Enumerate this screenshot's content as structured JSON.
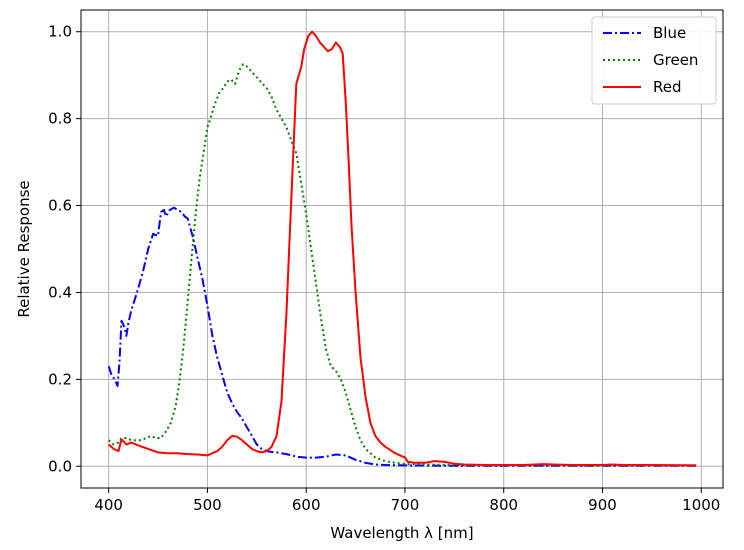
{
  "chart_data": {
    "type": "line",
    "xlabel": "Wavelength λ [nm]",
    "ylabel": "Relative Response",
    "xlim": [
      372,
      1022
    ],
    "ylim": [
      -0.05,
      1.05
    ],
    "xticks": [
      400,
      500,
      600,
      700,
      800,
      900,
      1000
    ],
    "yticks": [
      0.0,
      0.2,
      0.4,
      0.6,
      0.8,
      1.0
    ],
    "xtick_labels": [
      "400",
      "500",
      "600",
      "700",
      "800",
      "900",
      "1000"
    ],
    "ytick_labels": [
      "0.0",
      "0.2",
      "0.4",
      "0.6",
      "0.8",
      "1.0"
    ],
    "grid": true,
    "legend_position": "top-right",
    "series": [
      {
        "name": "Blue",
        "color": "#0000ff",
        "style": "dashdot",
        "points": [
          [
            400,
            0.23
          ],
          [
            403,
            0.21
          ],
          [
            406,
            0.2
          ],
          [
            409,
            0.185
          ],
          [
            411,
            0.24
          ],
          [
            413,
            0.335
          ],
          [
            416,
            0.32
          ],
          [
            418,
            0.3
          ],
          [
            420,
            0.33
          ],
          [
            423,
            0.36
          ],
          [
            426,
            0.38
          ],
          [
            430,
            0.41
          ],
          [
            435,
            0.45
          ],
          [
            440,
            0.5
          ],
          [
            445,
            0.535
          ],
          [
            450,
            0.53
          ],
          [
            453,
            0.585
          ],
          [
            456,
            0.59
          ],
          [
            458,
            0.575
          ],
          [
            462,
            0.59
          ],
          [
            466,
            0.595
          ],
          [
            470,
            0.59
          ],
          [
            474,
            0.585
          ],
          [
            477,
            0.575
          ],
          [
            480,
            0.57
          ],
          [
            485,
            0.53
          ],
          [
            490,
            0.48
          ],
          [
            495,
            0.43
          ],
          [
            500,
            0.37
          ],
          [
            505,
            0.3
          ],
          [
            510,
            0.25
          ],
          [
            515,
            0.21
          ],
          [
            520,
            0.17
          ],
          [
            525,
            0.145
          ],
          [
            530,
            0.125
          ],
          [
            535,
            0.11
          ],
          [
            540,
            0.09
          ],
          [
            545,
            0.07
          ],
          [
            550,
            0.05
          ],
          [
            555,
            0.04
          ],
          [
            560,
            0.035
          ],
          [
            565,
            0.033
          ],
          [
            570,
            0.032
          ],
          [
            580,
            0.028
          ],
          [
            590,
            0.022
          ],
          [
            600,
            0.02
          ],
          [
            610,
            0.02
          ],
          [
            620,
            0.022
          ],
          [
            630,
            0.027
          ],
          [
            640,
            0.025
          ],
          [
            650,
            0.015
          ],
          [
            660,
            0.008
          ],
          [
            670,
            0.004
          ],
          [
            680,
            0.003
          ],
          [
            700,
            0.002
          ],
          [
            750,
            0.001
          ],
          [
            800,
            0.001
          ],
          [
            850,
            0.001
          ],
          [
            900,
            0.001
          ],
          [
            950,
            0.001
          ],
          [
            995,
            0.001
          ]
        ]
      },
      {
        "name": "Green",
        "color": "#008000",
        "style": "dotted",
        "points": [
          [
            400,
            0.06
          ],
          [
            405,
            0.05
          ],
          [
            410,
            0.055
          ],
          [
            413,
            0.065
          ],
          [
            418,
            0.065
          ],
          [
            423,
            0.06
          ],
          [
            428,
            0.06
          ],
          [
            433,
            0.06
          ],
          [
            438,
            0.065
          ],
          [
            443,
            0.07
          ],
          [
            448,
            0.065
          ],
          [
            453,
            0.065
          ],
          [
            458,
            0.08
          ],
          [
            463,
            0.1
          ],
          [
            468,
            0.14
          ],
          [
            472,
            0.2
          ],
          [
            476,
            0.28
          ],
          [
            480,
            0.38
          ],
          [
            484,
            0.48
          ],
          [
            488,
            0.58
          ],
          [
            492,
            0.66
          ],
          [
            496,
            0.72
          ],
          [
            500,
            0.78
          ],
          [
            503,
            0.8
          ],
          [
            507,
            0.83
          ],
          [
            512,
            0.86
          ],
          [
            516,
            0.87
          ],
          [
            520,
            0.885
          ],
          [
            524,
            0.89
          ],
          [
            528,
            0.88
          ],
          [
            532,
            0.91
          ],
          [
            536,
            0.925
          ],
          [
            540,
            0.92
          ],
          [
            544,
            0.91
          ],
          [
            548,
            0.9
          ],
          [
            552,
            0.89
          ],
          [
            556,
            0.88
          ],
          [
            560,
            0.87
          ],
          [
            565,
            0.85
          ],
          [
            570,
            0.82
          ],
          [
            575,
            0.8
          ],
          [
            580,
            0.78
          ],
          [
            585,
            0.75
          ],
          [
            590,
            0.72
          ],
          [
            595,
            0.65
          ],
          [
            600,
            0.58
          ],
          [
            605,
            0.5
          ],
          [
            610,
            0.42
          ],
          [
            615,
            0.34
          ],
          [
            620,
            0.27
          ],
          [
            625,
            0.23
          ],
          [
            630,
            0.22
          ],
          [
            635,
            0.2
          ],
          [
            640,
            0.17
          ],
          [
            645,
            0.13
          ],
          [
            650,
            0.09
          ],
          [
            655,
            0.06
          ],
          [
            660,
            0.04
          ],
          [
            665,
            0.03
          ],
          [
            670,
            0.02
          ],
          [
            680,
            0.012
          ],
          [
            690,
            0.008
          ],
          [
            700,
            0.005
          ],
          [
            720,
            0.004
          ],
          [
            750,
            0.003
          ],
          [
            800,
            0.002
          ],
          [
            850,
            0.002
          ],
          [
            900,
            0.002
          ],
          [
            950,
            0.002
          ],
          [
            995,
            0.002
          ]
        ]
      },
      {
        "name": "Red",
        "color": "#ff0000",
        "style": "solid",
        "points": [
          [
            400,
            0.05
          ],
          [
            405,
            0.04
          ],
          [
            410,
            0.035
          ],
          [
            413,
            0.062
          ],
          [
            418,
            0.05
          ],
          [
            423,
            0.055
          ],
          [
            430,
            0.048
          ],
          [
            440,
            0.04
          ],
          [
            450,
            0.032
          ],
          [
            460,
            0.03
          ],
          [
            470,
            0.03
          ],
          [
            480,
            0.028
          ],
          [
            490,
            0.027
          ],
          [
            500,
            0.025
          ],
          [
            505,
            0.03
          ],
          [
            510,
            0.035
          ],
          [
            515,
            0.045
          ],
          [
            520,
            0.06
          ],
          [
            525,
            0.07
          ],
          [
            530,
            0.068
          ],
          [
            535,
            0.06
          ],
          [
            540,
            0.05
          ],
          [
            545,
            0.04
          ],
          [
            550,
            0.035
          ],
          [
            555,
            0.032
          ],
          [
            560,
            0.035
          ],
          [
            565,
            0.045
          ],
          [
            570,
            0.07
          ],
          [
            575,
            0.15
          ],
          [
            580,
            0.35
          ],
          [
            585,
            0.62
          ],
          [
            590,
            0.88
          ],
          [
            595,
            0.92
          ],
          [
            598,
            0.96
          ],
          [
            602,
            0.99
          ],
          [
            606,
            1.0
          ],
          [
            610,
            0.99
          ],
          [
            614,
            0.975
          ],
          [
            618,
            0.965
          ],
          [
            622,
            0.955
          ],
          [
            626,
            0.96
          ],
          [
            630,
            0.975
          ],
          [
            634,
            0.965
          ],
          [
            637,
            0.95
          ],
          [
            640,
            0.84
          ],
          [
            643,
            0.7
          ],
          [
            646,
            0.55
          ],
          [
            650,
            0.4
          ],
          [
            655,
            0.25
          ],
          [
            660,
            0.16
          ],
          [
            665,
            0.1
          ],
          [
            670,
            0.07
          ],
          [
            675,
            0.055
          ],
          [
            680,
            0.045
          ],
          [
            690,
            0.03
          ],
          [
            700,
            0.02
          ],
          [
            703,
            0.01
          ],
          [
            710,
            0.008
          ],
          [
            720,
            0.008
          ],
          [
            730,
            0.012
          ],
          [
            740,
            0.01
          ],
          [
            750,
            0.006
          ],
          [
            760,
            0.004
          ],
          [
            780,
            0.003
          ],
          [
            800,
            0.003
          ],
          [
            820,
            0.003
          ],
          [
            840,
            0.005
          ],
          [
            850,
            0.004
          ],
          [
            870,
            0.003
          ],
          [
            900,
            0.003
          ],
          [
            910,
            0.004
          ],
          [
            920,
            0.003
          ],
          [
            950,
            0.003
          ],
          [
            995,
            0.002
          ]
        ]
      }
    ]
  }
}
